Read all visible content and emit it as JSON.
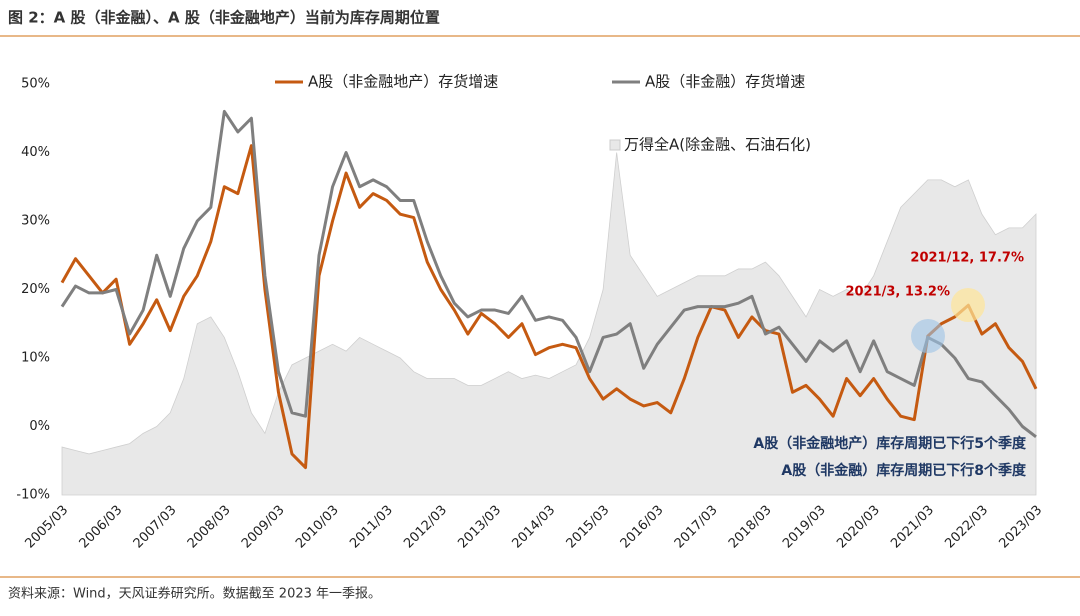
{
  "chart_data": {
    "type": "line",
    "title": "图 2：A 股（非金融）、A 股（非金融地产）当前为库存周期位置",
    "source": "资料来源：Wind，天风证券研究所。数据截至 2023 年一季报。",
    "categories": [
      "2005/03",
      null,
      null,
      null,
      "2006/03",
      null,
      null,
      null,
      "2007/03",
      null,
      null,
      null,
      "2008/03",
      null,
      null,
      null,
      "2009/03",
      null,
      null,
      null,
      "2010/03",
      null,
      null,
      null,
      "2011/03",
      null,
      null,
      null,
      "2012/03",
      null,
      null,
      null,
      "2013/03",
      null,
      null,
      null,
      "2014/03",
      null,
      null,
      null,
      "2015/03",
      null,
      null,
      null,
      "2016/03",
      null,
      null,
      null,
      "2017/03",
      null,
      null,
      null,
      "2018/03",
      null,
      null,
      null,
      "2019/03",
      null,
      null,
      null,
      "2020/03",
      null,
      null,
      null,
      "2021/03",
      null,
      null,
      null,
      "2022/03",
      null,
      null,
      null,
      "2023/03"
    ],
    "series": [
      {
        "name": "万得全A(除金融、石油石化)",
        "kind": "area",
        "color": "#e8e8e8",
        "values": [
          -3,
          -3.5,
          -4,
          -3.5,
          -3,
          -2.5,
          -1,
          0,
          2,
          7,
          15,
          16,
          13,
          8,
          2,
          -1,
          5,
          9,
          10,
          11,
          12,
          11,
          13,
          12,
          11,
          10,
          8,
          7,
          7,
          7,
          6,
          6,
          7,
          8,
          7,
          7.5,
          7,
          8,
          9,
          13,
          20,
          40,
          25,
          22,
          19,
          20,
          21,
          22,
          22,
          22,
          23,
          23,
          24,
          22,
          19,
          16,
          20,
          19,
          20,
          19,
          22,
          27,
          32,
          34,
          36,
          36,
          35,
          36,
          31,
          28,
          29,
          29,
          31
        ]
      },
      {
        "name": "A股（非金融地产）存货增速",
        "color": "#c55a11",
        "values": [
          21,
          24.5,
          22,
          19.5,
          21.5,
          12,
          15,
          18.5,
          14,
          19,
          22,
          27,
          35,
          34,
          41,
          20,
          5,
          -4,
          -6,
          22,
          30,
          37,
          32,
          34,
          33,
          31,
          30.5,
          24,
          20,
          17,
          13.5,
          16.5,
          15,
          13,
          15,
          10.5,
          11.5,
          12,
          11.5,
          7,
          4,
          5.5,
          4,
          3,
          3.5,
          2,
          7,
          13,
          17.5,
          17,
          13,
          16,
          14,
          13.5,
          5,
          6,
          4,
          1.5,
          7,
          4.5,
          7,
          4,
          1.5,
          1,
          13.2,
          15,
          16,
          17.7,
          13.5,
          15,
          11.5,
          9.5,
          5.5
        ]
      },
      {
        "name": "A股（非金融）存货增速",
        "color": "#7f7f7f",
        "values": [
          17.5,
          20.5,
          19.5,
          19.5,
          20,
          13.5,
          17,
          25,
          19,
          26,
          30,
          32,
          46,
          43,
          45,
          22,
          8,
          2,
          1.5,
          25,
          35,
          40,
          35,
          36,
          35,
          33,
          33,
          27,
          22,
          18,
          16,
          17,
          17,
          16.5,
          19,
          15.5,
          16,
          15.5,
          13,
          8,
          13,
          13.5,
          15,
          8.5,
          12,
          14.5,
          17,
          17.5,
          17.5,
          17.5,
          18,
          19,
          13.5,
          14.5,
          12,
          9.5,
          12.5,
          11,
          12.5,
          8,
          12.5,
          8,
          7,
          6,
          13,
          12,
          10,
          7,
          6.5,
          4.5,
          2.5,
          0,
          -1.5
        ]
      }
    ],
    "ylim": [
      -10,
      50
    ],
    "yticks": [
      {
        "value": 50,
        "label": "50%"
      },
      {
        "value": 40,
        "label": "40%"
      },
      {
        "value": 30,
        "label": "30%"
      },
      {
        "value": 20,
        "label": "20%"
      },
      {
        "value": 10,
        "label": "10%"
      },
      {
        "value": 0,
        "label": "0%"
      },
      {
        "value": -10,
        "label": "-10%"
      }
    ],
    "annotations": [
      "2021/12, 17.7%",
      "2021/3, 13.2%",
      "A股（非金融地产）库存周期已下行5个季度",
      "A股（非金融）库存周期已下行8个季度"
    ]
  }
}
